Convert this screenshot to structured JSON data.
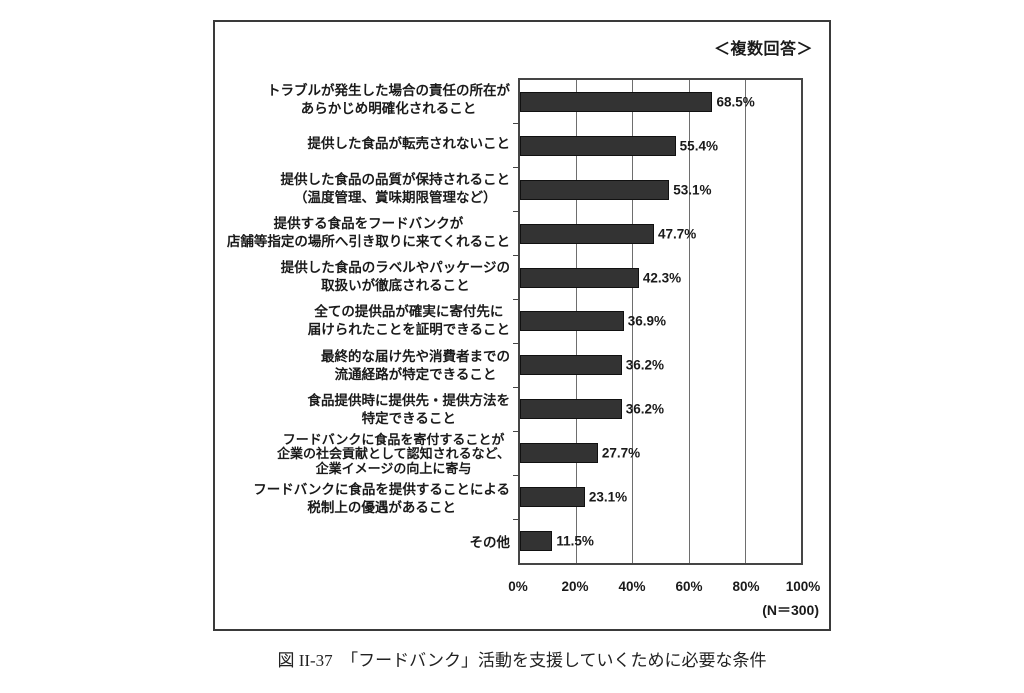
{
  "figure": {
    "annotation": "＜複数回答＞",
    "n_label": "(N＝300)",
    "caption": "図 II-37　「フードバンク」活動を支援していくために必要な条件"
  },
  "chart_data": {
    "type": "bar",
    "orientation": "horizontal",
    "title": "「フードバンク」活動を支援していくために必要な条件",
    "annotation": "＜複数回答＞",
    "sample_size": "(N＝300)",
    "categories": [
      [
        "トラブルが発生した場合の責任の所在が",
        "あらかじめ明確化されること"
      ],
      [
        "提供した食品が転売されないこと"
      ],
      [
        "提供した食品の品質が保持されること",
        "（温度管理、賞味期限管理など）"
      ],
      [
        "提供する食品をフードバンクが",
        "店舗等指定の場所へ引き取りに来てくれること"
      ],
      [
        "提供した食品のラベルやパッケージの",
        "取扱いが徹底されること"
      ],
      [
        "全ての提供品が確実に寄付先に",
        "届けられたことを証明できること"
      ],
      [
        "最終的な届け先や消費者までの",
        "流通経路が特定できること"
      ],
      [
        "食品提供時に提供先・提供方法を",
        "特定できること"
      ],
      [
        "フードバンクに食品を寄付することが",
        "企業の社会貢献として認知されるなど、",
        "企業イメージの向上に寄与"
      ],
      [
        "フードバンクに食品を提供することによる",
        "税制上の優遇があること"
      ],
      [
        "その他"
      ]
    ],
    "values": [
      68.5,
      55.4,
      53.1,
      47.7,
      42.3,
      36.9,
      36.2,
      36.2,
      27.7,
      23.1,
      11.5
    ],
    "value_labels": [
      "68.5%",
      "55.4%",
      "53.1%",
      "47.7%",
      "42.3%",
      "36.9%",
      "36.2%",
      "36.2%",
      "27.7%",
      "23.1%",
      "11.5%"
    ],
    "ticks_pct": [
      0,
      20,
      40,
      60,
      80,
      100
    ],
    "tick_labels": [
      "0%",
      "20%",
      "40%",
      "60%",
      "80%",
      "100%"
    ],
    "xlim": [
      0,
      100
    ],
    "grid": true,
    "legend": "none",
    "bar_color": "#333333",
    "line_color": "#454545"
  }
}
